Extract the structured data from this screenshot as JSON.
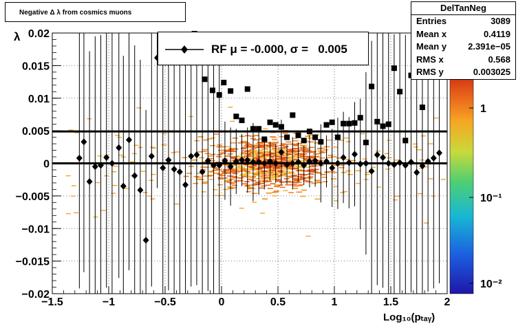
{
  "title": "Negative Δ λ  from cosmics muons",
  "stats": {
    "name": "DelTanNeg",
    "rows": [
      {
        "key": "Entries",
        "value": "3089"
      },
      {
        "key": "Mean x",
        "value": "0.4119"
      },
      {
        "key": "Mean y",
        "value": "2.391e−05"
      },
      {
        "key": "RMS x",
        "value": "0.568"
      },
      {
        "key": "RMS y",
        "value": "0.003025"
      }
    ]
  },
  "legend": {
    "label": "RF μ = -0.000, σ =   0.005"
  },
  "chart_data": {
    "type": "scatter",
    "xlabel": "Log₁₀(pₜₐᵧ)",
    "ylabel": "λ",
    "xlim": [
      -1.5,
      2.0
    ],
    "ylim": [
      -0.02,
      0.02
    ],
    "x_ticks": [
      -1.5,
      -1,
      -0.5,
      0,
      0.5,
      1,
      1.5,
      2
    ],
    "x_tick_labels": [
      "−1.5",
      "−1",
      "−0.5",
      "0",
      "0.5",
      "1",
      "1.5",
      "2"
    ],
    "y_ticks": [
      -0.02,
      -0.015,
      -0.01,
      -0.005,
      0,
      0.005,
      0.01,
      0.015,
      0.02
    ],
    "y_tick_labels": [
      "−0.02",
      "−0.015",
      "−0.01",
      "−0.005",
      "0",
      "0.005",
      "0.01",
      "0.015",
      "0.02"
    ],
    "grid": true,
    "colorbar": {
      "scale": "log",
      "labels": [
        "1",
        "10⁻¹",
        "10⁻²"
      ]
    },
    "reference_lines": [
      0.0,
      0.0049
    ],
    "series": [
      {
        "name": "RF",
        "marker": "diamond",
        "x": [
          -1.26,
          -1.22,
          -1.17,
          -1.12,
          -1.07,
          -1.02,
          -0.97,
          -0.91,
          -0.87,
          -0.82,
          -0.77,
          -0.72,
          -0.67,
          -0.62,
          -0.57,
          -0.52,
          -0.47,
          -0.42,
          -0.37,
          -0.32,
          -0.27,
          -0.22,
          -0.17,
          -0.12,
          -0.07,
          -0.02,
          0.03,
          0.08,
          0.13,
          0.18,
          0.23,
          0.28,
          0.33,
          0.38,
          0.43,
          0.48,
          0.53,
          0.58,
          0.63,
          0.68,
          0.73,
          0.78,
          0.83,
          0.88,
          0.93,
          0.98,
          1.03,
          1.08,
          1.13,
          1.18,
          1.23,
          1.28,
          1.33,
          1.38,
          1.43,
          1.48,
          1.53,
          1.58,
          1.63,
          1.68,
          1.73,
          1.78,
          1.83,
          1.88,
          1.93
        ],
        "y": [
          0.0008,
          0.0033,
          -0.0028,
          -0.0005,
          -0.0003,
          0.0009,
          0.0,
          0.0024,
          -0.0035,
          0.0036,
          -0.0019,
          -0.0041,
          -0.0118,
          0.0011,
          0.0162,
          -0.0007,
          0.0005,
          -0.0009,
          -0.0013,
          -0.0033,
          0.0011,
          0.0013,
          -0.0013,
          0.0004,
          -0.0003,
          -0.0003,
          0.0004,
          -0.0005,
          0.0003,
          0.0005,
          0.0005,
          0.0002,
          0.0002,
          0.0,
          0.0003,
          0.0,
          0.0017,
          -0.0002,
          0.0,
          0.0002,
          -0.0003,
          0.0003,
          0.0004,
          0.0,
          0.0003,
          -0.0007,
          0.0,
          0.0009,
          0.0001,
          0.0014,
          -0.0001,
          0.0,
          -0.0012,
          0.0013,
          0.0009,
          0.0,
          -0.0002,
          0.0001,
          -0.0003,
          0.0002,
          -0.0014,
          -0.0004,
          0.0003,
          0.0008,
          0.0016
        ],
        "err": [
          0.02,
          0.02,
          0.02,
          0.02,
          0.02,
          0.02,
          0.02,
          0.02,
          0.02,
          0.02,
          0.02,
          0.02,
          0.02,
          0.02,
          0.02,
          0.02,
          0.02,
          0.02,
          0.02,
          0.02,
          0.02,
          0.02,
          0.02,
          0.02,
          0.02,
          0.02,
          0.006,
          0.006,
          0.005,
          0.004,
          0.005,
          0.006,
          0.005,
          0.004,
          0.003,
          0.003,
          0.005,
          0.003,
          0.004,
          0.003,
          0.003,
          0.004,
          0.004,
          0.006,
          0.004,
          0.006,
          0.007,
          0.007,
          0.007,
          0.008,
          0.01,
          0.014,
          0.02,
          0.02,
          0.02,
          0.02,
          0.02,
          0.02,
          0.02,
          0.02,
          0.02,
          0.02,
          0.02,
          0.02,
          0.02
        ]
      },
      {
        "name": "",
        "marker": "square",
        "x": [
          -0.24,
          -0.15,
          -0.08,
          -0.02,
          0.02,
          0.08,
          0.13,
          0.18,
          0.23,
          0.28,
          0.33,
          0.38,
          0.43,
          0.48,
          0.53,
          0.58,
          0.63,
          0.68,
          0.73,
          0.78,
          0.83,
          0.88,
          0.93,
          0.98,
          1.03,
          1.08,
          1.13,
          1.18,
          1.23,
          1.28,
          1.33,
          1.38,
          1.43,
          1.48,
          1.53,
          1.58,
          1.63,
          1.68,
          1.73,
          1.78,
          1.83,
          1.88
        ],
        "y": [
          0.0199,
          0.0129,
          0.0112,
          0.0105,
          0.0124,
          0.0111,
          0.0072,
          0.0066,
          0.0114,
          0.0053,
          0.0053,
          0.0037,
          0.0063,
          0.0059,
          0.0056,
          0.004,
          0.0074,
          0.0043,
          0.0035,
          0.0049,
          0.004,
          0.0033,
          0.0059,
          0.0063,
          0.004,
          0.0061,
          0.0061,
          0.0062,
          0.007,
          0.0032,
          0.0118,
          0.0064,
          0.0057,
          0.006,
          0.0146,
          0.011,
          0.0035,
          0.0135,
          0.0148,
          0.0086,
          0.0195,
          0.0175
        ]
      }
    ]
  }
}
